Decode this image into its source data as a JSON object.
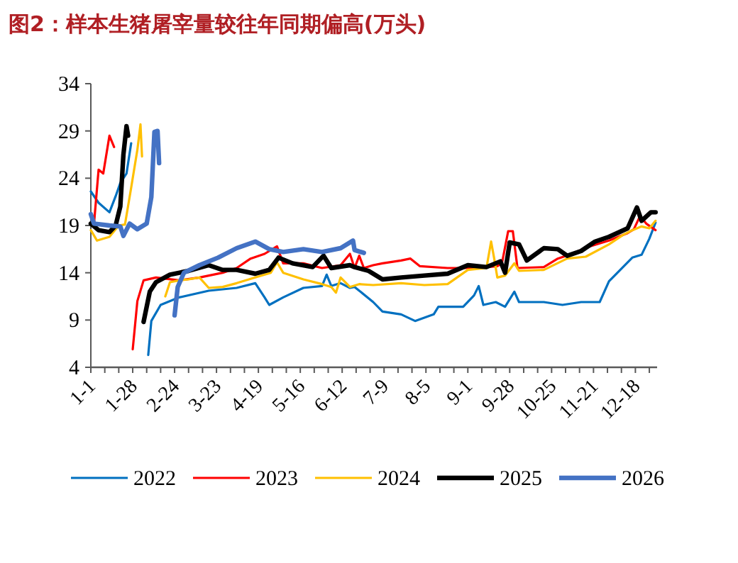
{
  "chart_data": {
    "type": "line",
    "title": "图2：样本生猪屠宰量较往年同期偏高(万头)",
    "xlim": [
      "--01-01",
      "--12-31"
    ],
    "ylim": [
      4,
      34
    ],
    "yticks": [
      4,
      9,
      14,
      19,
      24,
      29,
      34
    ],
    "xticks": [
      {
        "value": "--01-01",
        "label": "1-1"
      },
      {
        "value": "--01-10",
        "label": null
      },
      {
        "value": "--01-19",
        "label": null
      },
      {
        "value": "--01-28",
        "label": "1-28"
      },
      {
        "value": "--02-06",
        "label": null
      },
      {
        "value": "--02-15",
        "label": null
      },
      {
        "value": "--02-24",
        "label": "2-24"
      },
      {
        "value": "--03-05",
        "label": null
      },
      {
        "value": "--03-14",
        "label": null
      },
      {
        "value": "--03-23",
        "label": "3-23"
      },
      {
        "value": "--04-01",
        "label": null
      },
      {
        "value": "--04-10",
        "label": null
      },
      {
        "value": "--04-19",
        "label": "4-19"
      },
      {
        "value": "--04-28",
        "label": null
      },
      {
        "value": "--05-07",
        "label": null
      },
      {
        "value": "--05-16",
        "label": "5-16"
      },
      {
        "value": "--05-25",
        "label": null
      },
      {
        "value": "--06-03",
        "label": null
      },
      {
        "value": "--06-12",
        "label": "6-12"
      },
      {
        "value": "--06-21",
        "label": null
      },
      {
        "value": "--06-30",
        "label": null
      },
      {
        "value": "--07-09",
        "label": "7-9"
      },
      {
        "value": "--07-18",
        "label": null
      },
      {
        "value": "--07-27",
        "label": null
      },
      {
        "value": "--08-05",
        "label": "8-5"
      },
      {
        "value": "--08-14",
        "label": null
      },
      {
        "value": "--08-23",
        "label": null
      },
      {
        "value": "--09-01",
        "label": "9-1"
      },
      {
        "value": "--09-10",
        "label": null
      },
      {
        "value": "--09-19",
        "label": null
      },
      {
        "value": "--09-28",
        "label": "9-28"
      },
      {
        "value": "--10-07",
        "label": null
      },
      {
        "value": "--10-16",
        "label": null
      },
      {
        "value": "--10-25",
        "label": "10-25"
      },
      {
        "value": "--11-03",
        "label": null
      },
      {
        "value": "--11-12",
        "label": null
      },
      {
        "value": "--11-21",
        "label": "11-21"
      },
      {
        "value": "--11-30",
        "label": null
      },
      {
        "value": "--12-09",
        "label": null
      },
      {
        "value": "--12-18",
        "label": "12-18"
      },
      {
        "value": "--12-27",
        "label": null
      }
    ],
    "grid": false,
    "legend": "bottom",
    "marker": "none",
    "line_style": "solid",
    "series": [
      {
        "name": "2022",
        "color": "#0070c0",
        "x": [
          "--01-01",
          "--01-06",
          "--01-13",
          "--01-17",
          "--01-20",
          "--01-24",
          "--01-27",
          null,
          "--02-07",
          "--02-09",
          "--02-15",
          "--02-27",
          "--03-18",
          "--04-05",
          "--04-17",
          "--04-23",
          "--04-26",
          "--05-05",
          "--05-18",
          "--05-30",
          "--06-02",
          "--06-05",
          "--06-11",
          "--06-17",
          "--06-20",
          "--07-02",
          "--07-08",
          "--07-20",
          "--07-29",
          "--08-10",
          "--08-13",
          "--08-29",
          "--09-05",
          "--09-08",
          "--09-11",
          "--09-19",
          "--09-25",
          "--10-01",
          "--10-04",
          "--10-20",
          "--11-01",
          "--11-13",
          "--11-25",
          "--12-01",
          "--12-07",
          "--12-16",
          "--12-22",
          "--12-27",
          "--12-31"
        ],
        "values": [
          22.6,
          21.4,
          20.4,
          22.1,
          23.5,
          24.5,
          27.7,
          null,
          5.3,
          8.9,
          10.6,
          11.4,
          12.1,
          12.4,
          12.9,
          11.4,
          10.6,
          11.4,
          12.4,
          12.6,
          13.8,
          12.6,
          12.9,
          12.4,
          12.5,
          10.9,
          9.9,
          9.6,
          8.9,
          9.6,
          10.4,
          10.4,
          11.6,
          12.6,
          10.6,
          10.9,
          10.4,
          12.0,
          10.9,
          10.9,
          10.6,
          10.9,
          10.9,
          13.1,
          14.1,
          15.6,
          15.9,
          17.6,
          19.3
        ]
      },
      {
        "name": "2023",
        "color": "#ff0000",
        "x": [
          "--01-03",
          "--01-06",
          "--01-09",
          "--01-13",
          "--01-16",
          null,
          "--01-28",
          "--01-31",
          "--02-04",
          "--02-12",
          "--02-27",
          "--03-12",
          "--03-27",
          "--04-05",
          "--04-14",
          "--04-23",
          "--05-01",
          "--05-05",
          "--05-18",
          "--05-30",
          "--06-11",
          "--06-17",
          "--06-20",
          "--06-23",
          "--06-26",
          "--07-02",
          "--07-08",
          "--07-20",
          "--07-26",
          "--08-01",
          "--08-19",
          "--09-07",
          "--09-20",
          "--09-23",
          "--09-27",
          "--09-30",
          "--10-03",
          "--10-20",
          "--10-29",
          "--11-07",
          "--11-19",
          "--12-01",
          "--12-13",
          "--12-17",
          "--12-21",
          "--12-25",
          "--12-31"
        ],
        "values": [
          19.1,
          24.9,
          24.5,
          28.5,
          27.3,
          null,
          5.9,
          11.0,
          13.2,
          13.5,
          13.2,
          13.5,
          14.0,
          14.5,
          15.5,
          16.0,
          16.8,
          15.0,
          15.0,
          14.5,
          14.8,
          16.0,
          14.5,
          15.8,
          14.5,
          14.8,
          15.0,
          15.3,
          15.5,
          14.7,
          14.5,
          14.5,
          14.7,
          15.0,
          18.4,
          18.4,
          14.5,
          14.6,
          15.5,
          16.0,
          16.8,
          17.4,
          18.2,
          18.6,
          20.0,
          19.2,
          18.5
        ]
      },
      {
        "name": "2024",
        "color": "#ffc000",
        "x": [
          "--01-01",
          "--01-05",
          "--01-13",
          "--01-19",
          "--01-23",
          "--01-27",
          "--01-31",
          "--02-02",
          "--02-03",
          null,
          "--02-18",
          "--02-21",
          "--02-27",
          "--03-05",
          "--03-12",
          "--03-18",
          "--03-27",
          "--04-05",
          "--04-17",
          "--04-27",
          "--05-01",
          "--05-05",
          "--05-18",
          "--05-30",
          "--06-05",
          "--06-08",
          "--06-11",
          "--06-17",
          "--06-23",
          "--07-02",
          "--07-20",
          "--08-04",
          "--08-19",
          "--09-01",
          "--09-13",
          "--09-16",
          "--09-18",
          "--09-20",
          "--09-25",
          "--10-01",
          "--10-04",
          "--10-20",
          "--11-04",
          "--11-16",
          "--12-01",
          "--12-10",
          "--12-16",
          "--12-22",
          "--12-27",
          "--12-31"
        ],
        "values": [
          18.5,
          17.4,
          17.8,
          19.0,
          19.1,
          23.0,
          27.0,
          29.7,
          26.3,
          null,
          11.5,
          13.0,
          13.2,
          13.3,
          13.5,
          12.4,
          12.5,
          12.9,
          13.5,
          14.0,
          15.1,
          14.0,
          13.3,
          12.8,
          12.5,
          11.9,
          13.5,
          12.5,
          12.8,
          12.7,
          12.9,
          12.7,
          12.8,
          14.3,
          14.5,
          17.3,
          15.5,
          13.5,
          13.7,
          15.0,
          14.2,
          14.3,
          15.5,
          15.7,
          17.0,
          18.0,
          18.5,
          18.9,
          18.7,
          19.5
        ]
      },
      {
        "name": "2025",
        "color": "#000000",
        "x": [
          "--01-01",
          "--01-06",
          "--01-13",
          "--01-17",
          "--01-20",
          "--01-22",
          "--01-24",
          "--01-25",
          null,
          "--02-04",
          "--02-08",
          "--02-12",
          "--02-21",
          "--03-05",
          "--03-18",
          "--03-27",
          "--04-05",
          "--04-17",
          "--04-26",
          "--05-02",
          "--05-11",
          "--05-24",
          "--05-31",
          "--06-05",
          "--06-17",
          "--06-20",
          "--06-29",
          "--07-08",
          "--07-20",
          "--08-04",
          "--08-19",
          "--09-01",
          "--09-13",
          "--09-22",
          "--09-25",
          "--09-28",
          "--10-04",
          "--10-09",
          "--10-20",
          "--10-29",
          "--11-04",
          "--11-13",
          "--11-22",
          "--12-01",
          "--12-13",
          "--12-19",
          "--12-22",
          "--12-28",
          "--12-31"
        ],
        "values": [
          19.2,
          18.5,
          18.3,
          19.0,
          21.0,
          26.5,
          29.5,
          28.5,
          null,
          8.8,
          12.0,
          13.0,
          13.8,
          14.2,
          14.8,
          14.3,
          14.3,
          13.9,
          14.3,
          15.6,
          15.0,
          14.6,
          15.8,
          14.5,
          14.8,
          14.6,
          14.2,
          13.3,
          13.5,
          13.7,
          13.9,
          14.8,
          14.6,
          15.2,
          14.0,
          17.2,
          17.0,
          15.3,
          16.6,
          16.5,
          15.8,
          16.3,
          17.3,
          17.8,
          18.7,
          20.9,
          19.5,
          20.4,
          20.4
        ]
      },
      {
        "name": "2026",
        "color": "#4472c4",
        "x": [
          "--01-01",
          "--01-03",
          "--01-13",
          "--01-20",
          "--01-22",
          "--01-26",
          "--01-31",
          "--02-06",
          "--02-09",
          "--02-11",
          "--02-13",
          "--02-14",
          null,
          "--02-24",
          "--02-26",
          "--03-02",
          "--03-12",
          "--03-24",
          "--04-05",
          "--04-17",
          "--04-26",
          "--05-05",
          "--05-18",
          "--05-30",
          "--06-11",
          "--06-19",
          "--06-20",
          "--06-26"
        ],
        "values": [
          20.2,
          19.2,
          19.0,
          18.9,
          17.9,
          19.2,
          18.6,
          19.2,
          22.0,
          28.9,
          29.0,
          25.6,
          null,
          9.5,
          12.5,
          14.0,
          14.8,
          15.6,
          16.6,
          17.3,
          16.5,
          16.2,
          16.5,
          16.2,
          16.6,
          17.4,
          16.4,
          16.1
        ]
      }
    ]
  }
}
